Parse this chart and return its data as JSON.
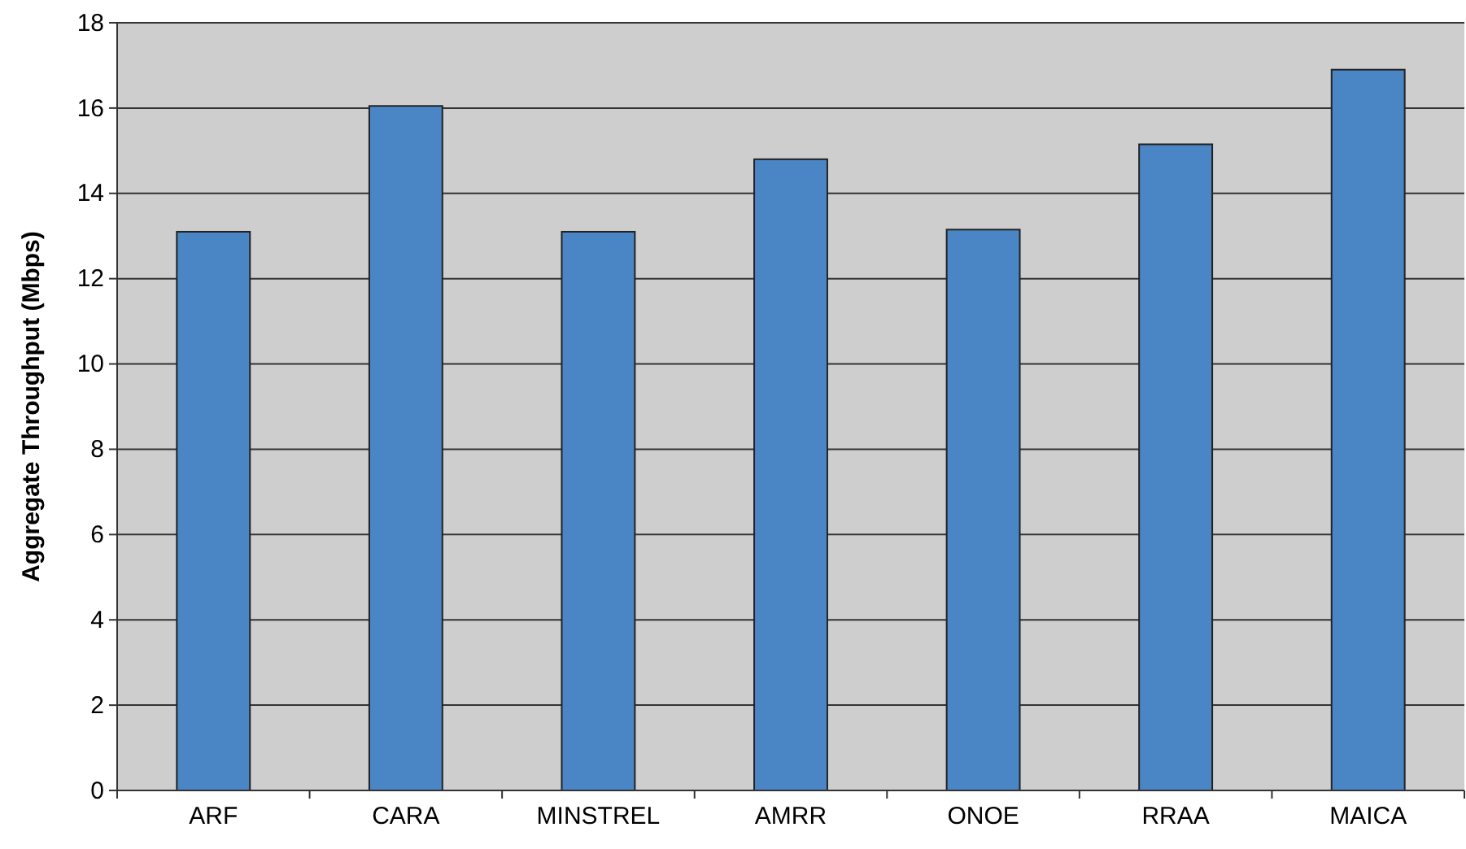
{
  "chart_data": {
    "type": "bar",
    "ylabel": "Aggregate Throughput (Mbps)",
    "categories": [
      "ARF",
      "CARA",
      "MINSTREL",
      "AMRR",
      "ONOE",
      "RRAA",
      "MAICA"
    ],
    "values": [
      13.1,
      16.05,
      13.1,
      14.8,
      13.15,
      15.15,
      16.9
    ],
    "color": "#4a86c5",
    "ylim": [
      0,
      18
    ],
    "yticks": [
      0,
      2,
      4,
      6,
      8,
      10,
      12,
      14,
      16,
      18
    ],
    "grid": "y"
  }
}
